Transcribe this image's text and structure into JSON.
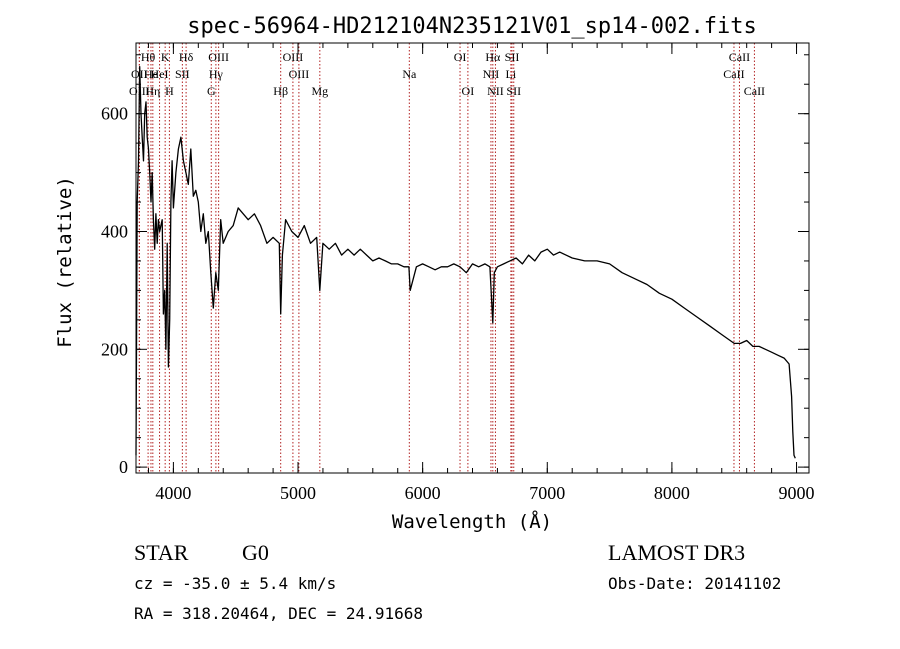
{
  "chart_data": {
    "type": "line",
    "title": "spec-56964-HD212104N235121V01_sp14-002.fits",
    "xlabel": "Wavelength (Å)",
    "ylabel": "Flux (relative)",
    "xlim": [
      3700,
      9100
    ],
    "ylim": [
      -10,
      720
    ],
    "xticks": [
      4000,
      5000,
      6000,
      7000,
      8000,
      9000
    ],
    "yticks": [
      0,
      200,
      400,
      600
    ],
    "x_minor_step": 200,
    "y_minor_step": 50,
    "series": [
      {
        "name": "spectrum",
        "x": [
          3700,
          3710,
          3720,
          3730,
          3740,
          3750,
          3760,
          3770,
          3780,
          3790,
          3800,
          3810,
          3820,
          3830,
          3840,
          3850,
          3860,
          3870,
          3880,
          3890,
          3900,
          3910,
          3920,
          3930,
          3940,
          3950,
          3960,
          3970,
          3980,
          3990,
          4000,
          4020,
          4040,
          4060,
          4080,
          4100,
          4120,
          4140,
          4160,
          4180,
          4200,
          4220,
          4240,
          4260,
          4280,
          4300,
          4320,
          4340,
          4360,
          4380,
          4400,
          4440,
          4480,
          4520,
          4560,
          4600,
          4650,
          4700,
          4750,
          4800,
          4850,
          4861,
          4875,
          4900,
          4950,
          5000,
          5050,
          5100,
          5150,
          5175,
          5200,
          5250,
          5300,
          5350,
          5400,
          5450,
          5500,
          5550,
          5600,
          5650,
          5700,
          5750,
          5800,
          5850,
          5890,
          5900,
          5950,
          6000,
          6050,
          6100,
          6150,
          6200,
          6250,
          6300,
          6350,
          6400,
          6450,
          6500,
          6540,
          6563,
          6575,
          6600,
          6650,
          6700,
          6750,
          6800,
          6850,
          6900,
          6950,
          7000,
          7050,
          7100,
          7150,
          7200,
          7300,
          7400,
          7500,
          7600,
          7700,
          7800,
          7900,
          8000,
          8100,
          8200,
          8300,
          8400,
          8500,
          8550,
          8600,
          8650,
          8700,
          8750,
          8800,
          8850,
          8900,
          8940,
          8960,
          8970,
          8980,
          8990
        ],
        "y": [
          20,
          450,
          520,
          680,
          600,
          560,
          520,
          600,
          620,
          560,
          540,
          500,
          450,
          500,
          420,
          370,
          430,
          380,
          420,
          400,
          410,
          420,
          260,
          300,
          200,
          380,
          170,
          250,
          450,
          520,
          440,
          500,
          540,
          560,
          520,
          500,
          480,
          540,
          460,
          470,
          450,
          400,
          430,
          380,
          400,
          330,
          270,
          330,
          300,
          420,
          380,
          400,
          410,
          440,
          430,
          420,
          430,
          410,
          380,
          390,
          380,
          260,
          360,
          420,
          400,
          390,
          410,
          380,
          390,
          300,
          380,
          370,
          380,
          360,
          370,
          360,
          370,
          360,
          350,
          355,
          350,
          345,
          345,
          340,
          340,
          300,
          340,
          345,
          340,
          335,
          340,
          340,
          345,
          340,
          330,
          345,
          340,
          345,
          340,
          245,
          330,
          340,
          345,
          350,
          355,
          345,
          360,
          350,
          365,
          370,
          360,
          365,
          360,
          355,
          350,
          350,
          345,
          330,
          320,
          310,
          295,
          285,
          270,
          255,
          240,
          225,
          210,
          210,
          215,
          205,
          205,
          200,
          195,
          190,
          185,
          175,
          120,
          60,
          20,
          15
        ]
      }
    ],
    "spectral_lines": [
      {
        "label": "Hθ",
        "wavelength": 3797,
        "row": 1
      },
      {
        "label": "OII",
        "wavelength": 3727,
        "row": 2
      },
      {
        "label": "OIII",
        "wavelength": 3727,
        "row": 3
      },
      {
        "label": "He",
        "wavelength": 3820,
        "row": 2
      },
      {
        "label": "Hη",
        "wavelength": 3835,
        "row": 3
      },
      {
        "label": "K",
        "wavelength": 3934,
        "row": 1
      },
      {
        "label": "HeI",
        "wavelength": 3889,
        "row": 2
      },
      {
        "label": "H",
        "wavelength": 3968,
        "row": 3
      },
      {
        "label": "Hδ",
        "wavelength": 4102,
        "row": 1
      },
      {
        "label": "SII",
        "wavelength": 4072,
        "row": 2
      },
      {
        "label": "OIII",
        "wavelength": 4363,
        "row": 1
      },
      {
        "label": "Hγ",
        "wavelength": 4341,
        "row": 2
      },
      {
        "label": "G",
        "wavelength": 4304,
        "row": 3
      },
      {
        "label": "Hβ",
        "wavelength": 4861,
        "row": 3
      },
      {
        "label": "OIII",
        "wavelength": 4959,
        "row": 1
      },
      {
        "label": "OIII",
        "wavelength": 5007,
        "row": 2
      },
      {
        "label": "Mg",
        "wavelength": 5175,
        "row": 3
      },
      {
        "label": "Na",
        "wavelength": 5893,
        "row": 2
      },
      {
        "label": "OI",
        "wavelength": 6300,
        "row": 1
      },
      {
        "label": "OI",
        "wavelength": 6363,
        "row": 3
      },
      {
        "label": "Hα",
        "wavelength": 6563,
        "row": 1
      },
      {
        "label": "NII",
        "wavelength": 6548,
        "row": 2
      },
      {
        "label": "NII",
        "wavelength": 6584,
        "row": 3
      },
      {
        "label": "SII",
        "wavelength": 6717,
        "row": 1
      },
      {
        "label": "Li",
        "wavelength": 6708,
        "row": 2
      },
      {
        "label": "SII",
        "wavelength": 6731,
        "row": 3
      },
      {
        "label": "CaII",
        "wavelength": 8542,
        "row": 1
      },
      {
        "label": "CaII",
        "wavelength": 8498,
        "row": 2
      },
      {
        "label": "CaII",
        "wavelength": 8662,
        "row": 3
      }
    ],
    "colors": {
      "spectrum": "#000000",
      "line_markers": "#b22222",
      "axes": "#000000"
    }
  },
  "info": {
    "object_class": "STAR",
    "subclass": "G0",
    "survey": "LAMOST DR3",
    "cz": "cz = -35.0 ± 5.4 km/s",
    "obs_date": "Obs-Date: 20141102",
    "coords": "RA = 318.20464, DEC =  24.91668"
  }
}
